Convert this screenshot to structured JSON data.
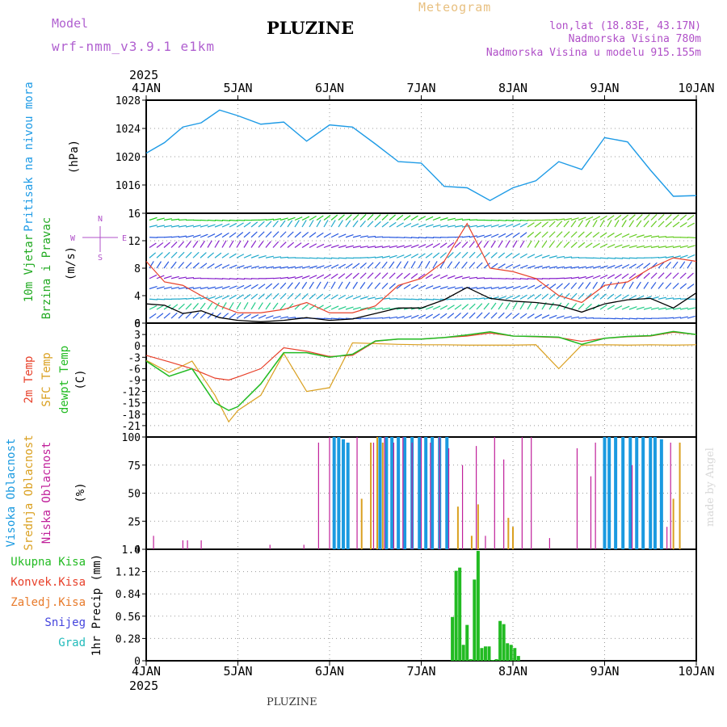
{
  "header": {
    "model_label": "Model",
    "model_name": "wrf-nmm_v3.9.1 e1km",
    "station": "PLUZINE",
    "product": "Meteogram",
    "lonlat": "lon,lat (18.83E, 43.17N)",
    "altitude": "Nadmorska Visina 780m",
    "model_altitude": "Nadmorska Visina u modelu 915.155m"
  },
  "footer": {
    "station": "PLUZINE",
    "credit": "made by Angel"
  },
  "colors": {
    "pressure": "#1e9be6",
    "temp2m": "#e8402a",
    "sfc": "#daa020",
    "dewpt": "#22bb22",
    "high_cloud": "#1a9ae0",
    "mid_cloud": "#daa020",
    "low_cloud": "#c0209a",
    "precip_total": "#22bb22",
    "precip_conv": "#e8402a",
    "precip_frz": "#e87a2a",
    "snow": "#4444dd",
    "hail": "#22bbbb",
    "axis_label_wind": "#22aa22"
  },
  "time_axis": {
    "year": "2025",
    "ticks": [
      "4JAN",
      "5JAN",
      "6JAN",
      "7JAN",
      "8JAN",
      "9JAN",
      "10JAN"
    ]
  },
  "chart_data": [
    {
      "type": "line",
      "id": "pressure",
      "ylabel": "Pritisak na nivou mora",
      "unit": "(hPa)",
      "ylim": [
        1012,
        1028
      ],
      "yticks": [
        "1016",
        "1020",
        "1024",
        "1028"
      ],
      "x": [
        0,
        0.2,
        0.4,
        0.6,
        0.8,
        1.0,
        1.25,
        1.5,
        1.75,
        2.0,
        2.25,
        2.5,
        2.75,
        3.0,
        3.25,
        3.5,
        3.75,
        4.0,
        4.25,
        4.5,
        4.75,
        5.0,
        5.25,
        5.5,
        5.75,
        6.0
      ],
      "series": [
        {
          "values": [
            1020.5,
            1022,
            1024.2,
            1024.8,
            1026.6,
            1025.8,
            1024.6,
            1024.9,
            1022.2,
            1024.5,
            1024.2,
            1021.8,
            1019.3,
            1019.1,
            1015.8,
            1015.6,
            1013.8,
            1015.6,
            1016.6,
            1019.3,
            1018.2,
            1022.7,
            1022.1,
            1018.1,
            1014.4,
            1014.5
          ]
        }
      ]
    },
    {
      "type": "line",
      "id": "wind",
      "ylabel_1": "10m Vjetar",
      "ylabel_2": "Brzina i Pravac",
      "unit": "(m/s)",
      "legend_marks": [
        "N",
        "W",
        "E",
        "S"
      ],
      "ylim": [
        0,
        16
      ],
      "yticks": [
        "0",
        "4",
        "8",
        "12",
        "16"
      ],
      "x": [
        0,
        0.2,
        0.4,
        0.6,
        0.8,
        1.0,
        1.25,
        1.5,
        1.75,
        2.0,
        2.25,
        2.5,
        2.75,
        3.0,
        3.25,
        3.5,
        3.75,
        4.0,
        4.25,
        4.5,
        4.75,
        5.0,
        5.25,
        5.5,
        5.75,
        6.0
      ],
      "series": [
        {
          "values": [
            2.8,
            2.6,
            1.4,
            1.8,
            0.8,
            0.4,
            0.2,
            0.4,
            0.8,
            0.4,
            0.6,
            1.4,
            2.2,
            2.2,
            3.4,
            5.2,
            3.6,
            3.2,
            3.0,
            2.6,
            1.6,
            2.8,
            3.4,
            3.6,
            2.2,
            4.4
          ]
        },
        {
          "values": [
            9,
            6,
            5.5,
            4,
            2.5,
            1.5,
            1.5,
            2,
            3,
            1.5,
            1.5,
            2.5,
            5.5,
            6.5,
            9,
            14.5,
            8,
            7.5,
            6.5,
            4,
            3,
            5.5,
            6,
            8,
            9.5,
            9
          ]
        }
      ]
    },
    {
      "type": "line",
      "id": "temperature",
      "ylabel_1": "2m Temp",
      "ylabel_2": "SFC Temp",
      "ylabel_3": "dewpt Temp",
      "unit": "(C)",
      "ylim": [
        -24,
        6
      ],
      "yticks": [
        "-21",
        "-18",
        "-15",
        "-12",
        "-9",
        "-6",
        "-3",
        "0",
        "3",
        "6"
      ],
      "x": [
        0,
        0.25,
        0.5,
        0.75,
        0.9,
        1.0,
        1.25,
        1.5,
        1.75,
        2.0,
        2.25,
        2.5,
        2.75,
        3.0,
        3.25,
        3.5,
        3.75,
        4.0,
        4.25,
        4.5,
        4.75,
        5.0,
        5.25,
        5.5,
        5.75,
        6.0
      ],
      "series": [
        {
          "values": [
            -2.5,
            -4.2,
            -6,
            -8.5,
            -9,
            -8.2,
            -6,
            -0.5,
            -1.4,
            -2.8,
            -2.5,
            1.2,
            1.8,
            1.8,
            2.2,
            2.6,
            3.4,
            2.6,
            2.4,
            2.2,
            1.2,
            2.0,
            2.4,
            2.6,
            3.6,
            3.0
          ]
        },
        {
          "values": [
            -3.8,
            -7,
            -4,
            -13,
            -20,
            -17,
            -13,
            -2,
            -12,
            -11,
            0.8,
            0.6,
            0.4,
            0.3,
            0.3,
            0.2,
            0.2,
            0.2,
            0.3,
            -6,
            0.2,
            0.3,
            0.2,
            0.3,
            0.2,
            0.3
          ]
        },
        {
          "values": [
            -4,
            -8,
            -6,
            -15,
            -17,
            -16,
            -10,
            -1.8,
            -1.8,
            -3,
            -2.2,
            1.3,
            1.8,
            1.8,
            2.2,
            2.9,
            3.7,
            2.6,
            2.5,
            2.3,
            0.4,
            2.0,
            2.5,
            2.7,
            3.8,
            3.0
          ]
        }
      ]
    },
    {
      "type": "bar",
      "id": "clouds",
      "ylabel_1": "Visoka Oblacnost",
      "ylabel_2": "Srednja Oblacnost",
      "ylabel_3": "Niska Oblacnost",
      "unit": "(%)",
      "ylim": [
        0,
        100
      ],
      "yticks": [
        "0",
        "25",
        "50",
        "75",
        "100"
      ],
      "series": [
        {
          "x": [
            2.05,
            2.1,
            2.15,
            2.2,
            2.55,
            2.62,
            2.68,
            2.75,
            2.82,
            2.9,
            2.98,
            3.05,
            3.12,
            3.2,
            3.28,
            5.0,
            5.05,
            5.12,
            5.2,
            5.28,
            5.35,
            5.42,
            5.5,
            5.55,
            5.62
          ],
          "values": [
            100,
            100,
            98,
            95,
            100,
            100,
            100,
            100,
            100,
            100,
            100,
            100,
            100,
            100,
            100,
            100,
            100,
            100,
            100,
            100,
            100,
            100,
            100,
            100,
            98
          ]
        },
        {
          "x": [
            2.35,
            2.45,
            2.52,
            2.58,
            3.4,
            3.55,
            3.62,
            3.95,
            4.0,
            5.75,
            5.82
          ],
          "values": [
            45,
            95,
            100,
            95,
            38,
            12,
            40,
            28,
            20,
            45,
            95
          ]
        },
        {
          "x": [
            0.08,
            0.4,
            0.45,
            0.6,
            1.35,
            1.72,
            1.88,
            2.0,
            2.3,
            2.48,
            2.6,
            2.7,
            2.8,
            2.9,
            3.0,
            3.1,
            3.2,
            3.3,
            3.45,
            3.6,
            3.7,
            3.8,
            3.9,
            4.1,
            4.2,
            4.4,
            4.7,
            4.85,
            4.9,
            5.3,
            5.68,
            5.72
          ],
          "values": [
            12,
            8,
            8,
            8,
            4,
            4,
            95,
            100,
            100,
            95,
            100,
            95,
            100,
            95,
            100,
            95,
            100,
            90,
            75,
            92,
            12,
            100,
            80,
            100,
            100,
            10,
            90,
            65,
            95,
            75,
            20,
            95
          ]
        }
      ]
    },
    {
      "type": "bar",
      "id": "precip",
      "legend": [
        "Ukupna Kisa",
        "Konvek.Kisa",
        "Zaledj.Kisa",
        "Snijeg",
        "Grad"
      ],
      "ylabel": "1hr Precip (mm)",
      "ylim": [
        0,
        1.4
      ],
      "yticks": [
        "0",
        "0.28",
        "0.56",
        "0.84",
        "1.12",
        "1.4"
      ],
      "x": [
        3.34,
        3.38,
        3.42,
        3.46,
        3.5,
        3.54,
        3.58,
        3.62,
        3.66,
        3.7,
        3.74,
        3.78,
        3.82,
        3.86,
        3.9,
        3.94,
        3.98,
        4.02,
        4.06
      ],
      "series": [
        {
          "values": [
            0.55,
            1.13,
            1.17,
            0.2,
            0.45,
            0.02,
            1.02,
            1.38,
            0.16,
            0.18,
            0.18,
            0.01,
            0.02,
            0.5,
            0.46,
            0.22,
            0.2,
            0.16,
            0.06
          ]
        }
      ]
    }
  ]
}
